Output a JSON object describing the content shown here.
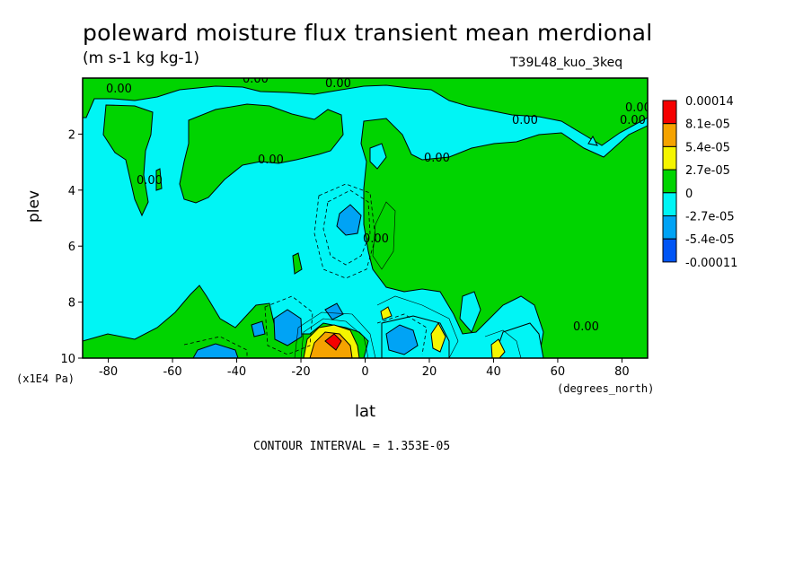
{
  "chart_data": {
    "type": "heatmap",
    "title": "poleward moisture flux transient mean merdional",
    "units": "(m s-1 kg kg-1)",
    "run_label": "T39L48_kuo_3keq",
    "xlabel": "lat",
    "x_unit_label": "(degrees_north)",
    "ylabel": "plev",
    "y_unit_label": "(x1E4 Pa)",
    "footer": "CONTOUR INTERVAL = 1.353E-05",
    "xlim": [
      -88,
      88
    ],
    "ylim": [
      0,
      10
    ],
    "y_inverted": true,
    "x_ticks": [
      "-80",
      "-60",
      "-40",
      "-20",
      "0",
      "20",
      "40",
      "60",
      "80"
    ],
    "x_tick_values": [
      -80,
      -60,
      -40,
      -20,
      0,
      20,
      40,
      60,
      80
    ],
    "y_ticks": [
      "2",
      "4",
      "6",
      "8",
      "10"
    ],
    "y_tick_values": [
      2,
      4,
      6,
      8,
      10
    ],
    "contour_labels": [
      "0.00",
      "0.00",
      "0.00",
      "0.00",
      "0.00",
      "0.00",
      "0.00",
      "0.00",
      "0.00",
      "0.00",
      "0.00"
    ],
    "colorbar": {
      "labels": [
        "0.00014",
        "8.1e-05",
        "5.4e-05",
        "2.7e-05",
        "0",
        "-2.7e-05",
        "-5.4e-05",
        "-0.00011"
      ],
      "colors": [
        "#f50000",
        "#f5a300",
        "#f5f500",
        "#00d400",
        "#00f5f5",
        "#00a3f5",
        "#0055f5"
      ]
    }
  }
}
